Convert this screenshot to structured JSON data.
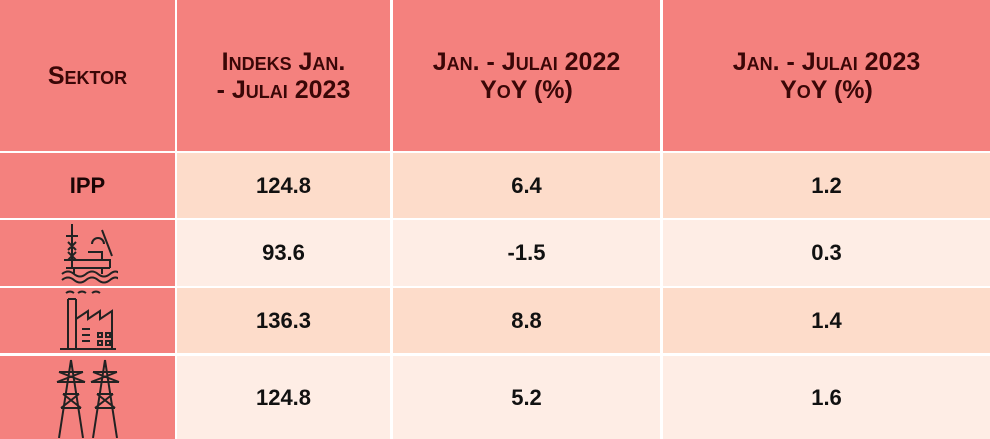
{
  "table": {
    "header": [
      [
        "Sektor"
      ],
      [
        "Indeks Jan.",
        "- Julai 2023"
      ],
      [
        "Jan. - Julai 2022",
        "YoY (%)"
      ],
      [
        "Jan. - Julai 2023",
        "YoY (%)"
      ]
    ],
    "rows": [
      {
        "sektor": "IPP",
        "values": [
          124.8,
          6.4,
          1.2
        ]
      },
      {
        "values": [
          93.6,
          -1.5,
          0.3
        ]
      },
      {
        "values": [
          136.3,
          8.8,
          1.4
        ]
      },
      {
        "values": [
          124.8,
          5.2,
          1.6
        ]
      }
    ]
  }
}
